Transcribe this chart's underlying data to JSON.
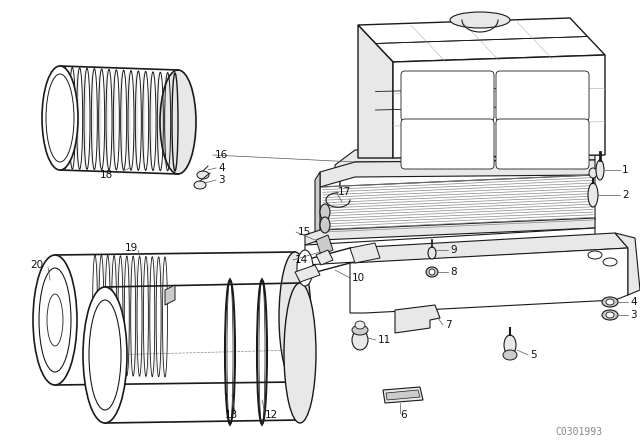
{
  "background_color": "#ffffff",
  "line_color": "#1a1a1a",
  "fig_width": 6.4,
  "fig_height": 4.48,
  "dpi": 100,
  "watermark": "C0301993",
  "watermark_color": "#888888"
}
